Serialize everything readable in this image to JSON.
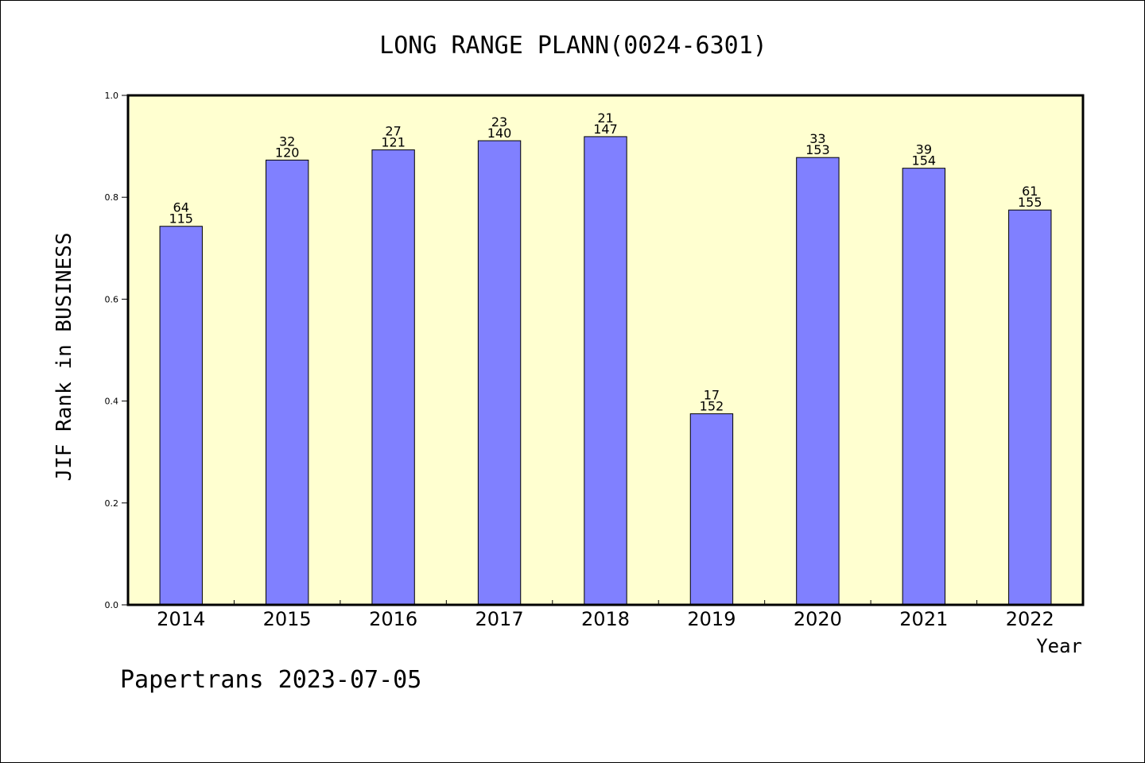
{
  "chart_data": {
    "type": "bar",
    "title": "LONG RANGE PLANN(0024-6301)",
    "ylabel": "JIF Rank in BUSINESS",
    "xlabel": "Year",
    "categories": [
      "2014",
      "2015",
      "2016",
      "2017",
      "2018",
      "2019",
      "2020",
      "2021",
      "2022"
    ],
    "values": [
      0.743,
      0.873,
      0.893,
      0.911,
      0.919,
      0.375,
      0.878,
      0.857,
      0.775
    ],
    "rank": [
      64,
      32,
      27,
      23,
      21,
      17,
      33,
      39,
      61
    ],
    "total": [
      115,
      120,
      121,
      140,
      147,
      152,
      153,
      154,
      155
    ],
    "ylim": [
      0,
      1.0
    ],
    "yticks": [
      "0.0",
      "0.2",
      "0.4",
      "0.6",
      "0.8",
      "1.0"
    ],
    "grid": false,
    "colors": {
      "bar": "#8080ff",
      "plot_bg": "#ffffd0",
      "frame": "#000000"
    }
  },
  "footer": {
    "text": "Papertrans 2023-07-05"
  }
}
